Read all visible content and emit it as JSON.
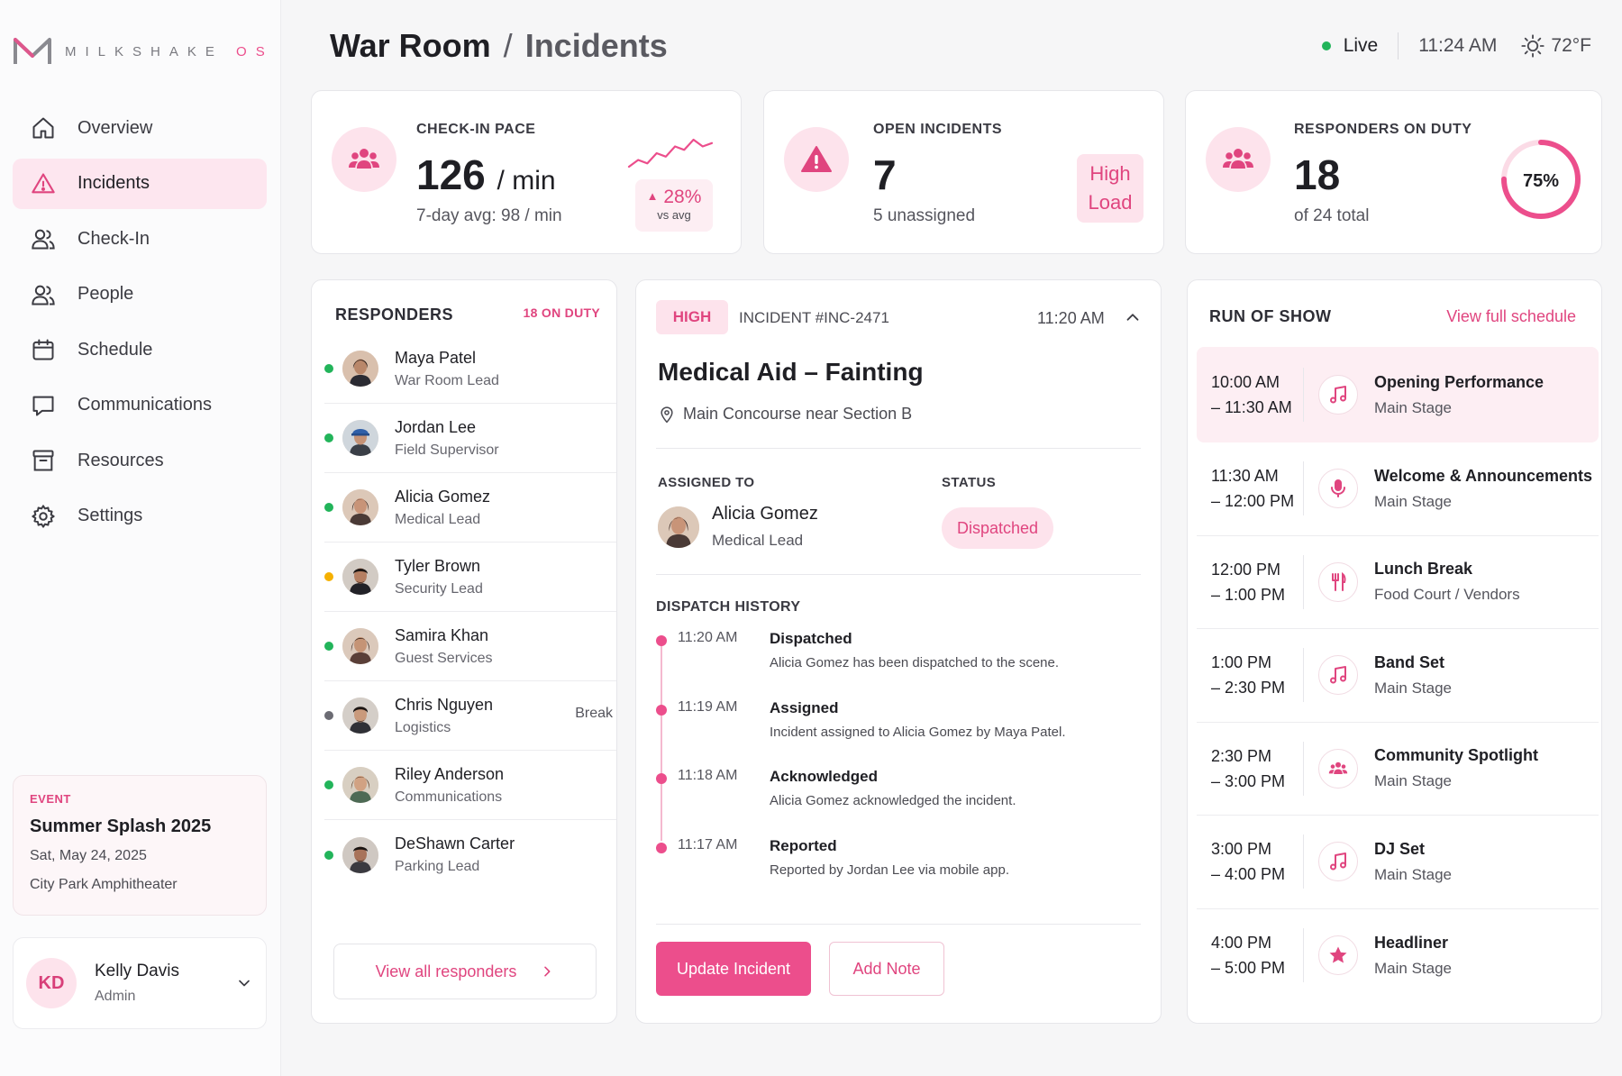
{
  "brand": {
    "logo_letter": "M",
    "name": "MILKSHAKE",
    "suffix": "OS"
  },
  "colors": {
    "accent": "#ec4e8c",
    "accent_soft": "#fde3ec",
    "live": "#22b45a",
    "away": "#f5b000",
    "offline": "#6b6b73"
  },
  "nav": [
    {
      "label": "Overview",
      "icon": "home-icon"
    },
    {
      "label": "Incidents",
      "icon": "alert-triangle-icon",
      "active": true
    },
    {
      "label": "Check-In",
      "icon": "users-icon"
    },
    {
      "label": "People",
      "icon": "users-icon"
    },
    {
      "label": "Schedule",
      "icon": "calendar-icon"
    },
    {
      "label": "Communications",
      "icon": "chat-icon"
    },
    {
      "label": "Resources",
      "icon": "archive-icon"
    },
    {
      "label": "Settings",
      "icon": "gear-icon"
    }
  ],
  "event": {
    "tag": "EVENT",
    "name": "Summer Splash 2025",
    "date": "Sat, May 24, 2025",
    "venue": "City Park Amphitheater"
  },
  "user": {
    "initials": "KD",
    "name": "Kelly Davis",
    "role": "Admin"
  },
  "header": {
    "title": "War Room",
    "separator": "/",
    "subtitle": "Incidents",
    "live": "Live",
    "time": "11:24 AM",
    "weather": "72°F"
  },
  "kpis": {
    "pace": {
      "label": "CHECK-IN PACE",
      "value": "126",
      "unit": "/ min",
      "sub": "7-day avg: 98 / min",
      "delta": "28%",
      "delta_caption": "vs avg",
      "sparkline": [
        18,
        14,
        16,
        10,
        12,
        6,
        8,
        2,
        6,
        4
      ]
    },
    "incidents": {
      "label": "OPEN INCIDENTS",
      "value": "7",
      "sub": "5 unassigned",
      "badge_line1": "High",
      "badge_line2": "Load"
    },
    "responders": {
      "label": "RESPONDERS ON DUTY",
      "value": "18",
      "sub": "of 24 total",
      "percent": "75%",
      "fraction": 0.75
    }
  },
  "responders": {
    "title": "RESPONDERS",
    "count": "18 ON DUTY",
    "button": "View all responders",
    "items": [
      {
        "name": "Maya Patel",
        "role": "War Room Lead",
        "status": "#22b45a",
        "tag": ""
      },
      {
        "name": "Jordan Lee",
        "role": "Field Supervisor",
        "status": "#22b45a",
        "tag": ""
      },
      {
        "name": "Alicia Gomez",
        "role": "Medical Lead",
        "status": "#22b45a",
        "tag": ""
      },
      {
        "name": "Tyler Brown",
        "role": "Security Lead",
        "status": "#f5b000",
        "tag": ""
      },
      {
        "name": "Samira Khan",
        "role": "Guest Services",
        "status": "#22b45a",
        "tag": ""
      },
      {
        "name": "Chris Nguyen",
        "role": "Logistics",
        "status": "#6b6b73",
        "tag": "Break"
      },
      {
        "name": "Riley Anderson",
        "role": "Communications",
        "status": "#22b45a",
        "tag": ""
      },
      {
        "name": "DeShawn Carter",
        "role": "Parking Lead",
        "status": "#22b45a",
        "tag": ""
      }
    ]
  },
  "incident": {
    "severity": "HIGH",
    "id": "INCIDENT #INC-2471",
    "time": "11:20 AM",
    "title": "Medical Aid – Fainting",
    "location": "Main Concourse near Section B",
    "assigned_label": "ASSIGNED TO",
    "assignee_name": "Alicia Gomez",
    "assignee_role": "Medical Lead",
    "status_label": "STATUS",
    "status": "Dispatched",
    "history_label": "DISPATCH HISTORY",
    "history": [
      {
        "time": "11:20 AM",
        "event": "Dispatched",
        "desc": "Alicia Gomez has been dispatched to the scene."
      },
      {
        "time": "11:19 AM",
        "event": "Assigned",
        "desc": "Incident assigned to Alicia Gomez by Maya Patel."
      },
      {
        "time": "11:18 AM",
        "event": "Acknowledged",
        "desc": "Alicia Gomez acknowledged the incident."
      },
      {
        "time": "11:17 AM",
        "event": "Reported",
        "desc": "Reported by Jordan Lee via mobile app."
      }
    ],
    "primary_button": "Update Incident",
    "secondary_button": "Add Note"
  },
  "run_of_show": {
    "title": "RUN OF SHOW",
    "link": "View full schedule",
    "items": [
      {
        "start": "10:00 AM",
        "end": "– 11:30 AM",
        "title": "Opening Performance",
        "place": "Main Stage",
        "icon": "music-icon",
        "current": true
      },
      {
        "start": "11:30 AM",
        "end": "– 12:00 PM",
        "title": "Welcome & Announcements",
        "place": "Main Stage",
        "icon": "microphone-icon"
      },
      {
        "start": "12:00 PM",
        "end": "– 1:00 PM",
        "title": "Lunch Break",
        "place": "Food Court / Vendors",
        "icon": "utensils-icon"
      },
      {
        "start": "1:00 PM",
        "end": "– 2:30 PM",
        "title": "Band Set",
        "place": "Main Stage",
        "icon": "music-icon"
      },
      {
        "start": "2:30 PM",
        "end": "– 3:00 PM",
        "title": "Community Spotlight",
        "place": "Main Stage",
        "icon": "group-icon"
      },
      {
        "start": "3:00 PM",
        "end": "– 4:00 PM",
        "title": "DJ Set",
        "place": "Main Stage",
        "icon": "music-icon"
      },
      {
        "start": "4:00 PM",
        "end": "– 5:00 PM",
        "title": "Headliner",
        "place": "Main Stage",
        "icon": "star-icon"
      }
    ]
  }
}
